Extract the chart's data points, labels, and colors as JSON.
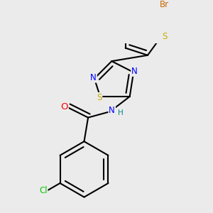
{
  "bg_color": "#ebebeb",
  "bond_color": "#000000",
  "bond_width": 1.5,
  "atom_colors": {
    "S": "#ccaa00",
    "N": "#0000ff",
    "O": "#ff0000",
    "Cl": "#00cc00",
    "Br": "#cc6600",
    "H": "#008888"
  },
  "font_size": 8.5
}
